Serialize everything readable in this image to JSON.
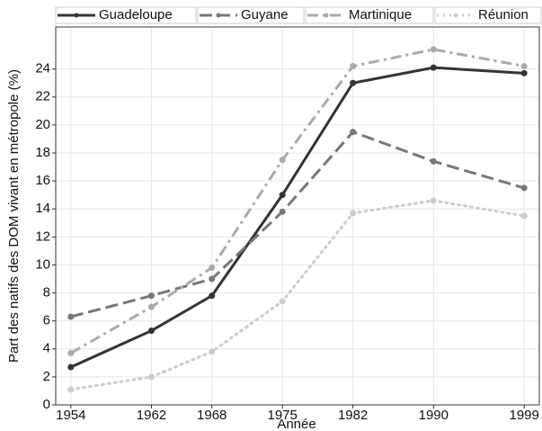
{
  "chart_data": {
    "type": "line",
    "x_label": "Année",
    "y_label": "Part des natifs des DOM vivant en métropole (%)",
    "x": [
      1954,
      1962,
      1968,
      1975,
      1982,
      1990,
      1999
    ],
    "series": [
      {
        "name": "Guadeloupe",
        "color": "#333333",
        "dash": "solid",
        "values": [
          2.7,
          5.3,
          7.8,
          15.0,
          23.0,
          24.1,
          23.7
        ]
      },
      {
        "name": "Guyane",
        "color": "#777777",
        "dash": "dashed",
        "values": [
          6.3,
          7.8,
          9.0,
          13.8,
          19.5,
          17.4,
          15.5
        ]
      },
      {
        "name": "Martinique",
        "color": "#aaaaaa",
        "dash": "dashdot",
        "values": [
          3.7,
          7.0,
          9.8,
          17.5,
          24.2,
          25.4,
          24.2
        ]
      },
      {
        "name": "Réunion",
        "color": "#cccccc",
        "dash": "dotted",
        "values": [
          1.1,
          2.0,
          3.8,
          7.4,
          13.7,
          14.6,
          13.5
        ]
      }
    ],
    "xlim": [
      1952.5,
      2000.5
    ],
    "xticks": [
      1954,
      1962,
      1968,
      1975,
      1982,
      1990,
      1999
    ],
    "ylim": [
      0,
      27
    ],
    "yticks": [
      0,
      2,
      4,
      6,
      8,
      10,
      12,
      14,
      16,
      18,
      20,
      22,
      24
    ],
    "grid": true,
    "legend": "top"
  }
}
